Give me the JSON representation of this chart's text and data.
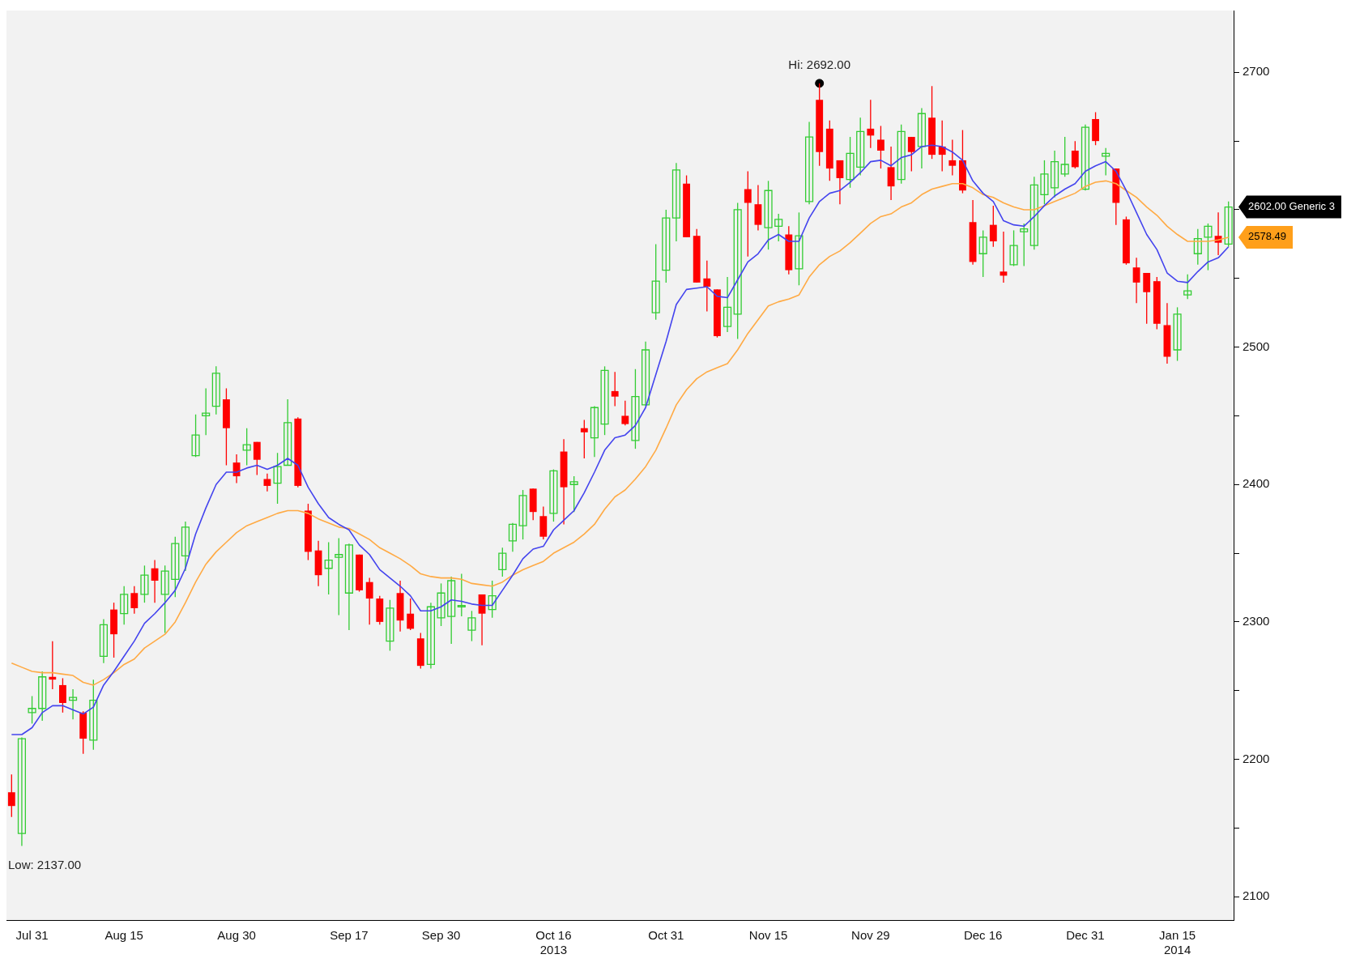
{
  "chart_data": {
    "type": "candlestick",
    "categories": [
      null,
      null,
      "Jul 31",
      null,
      null,
      null,
      null,
      null,
      null,
      null,
      null,
      "Aug 15",
      null,
      null,
      null,
      null,
      null,
      null,
      null,
      null,
      null,
      null,
      "Aug 30",
      null,
      null,
      null,
      null,
      null,
      null,
      null,
      null,
      null,
      null,
      "Sep 17",
      null,
      null,
      null,
      null,
      null,
      null,
      null,
      null,
      "Sep 30",
      null,
      null,
      null,
      null,
      null,
      null,
      null,
      null,
      null,
      null,
      "Oct 16\n2013",
      null,
      null,
      null,
      null,
      null,
      null,
      null,
      null,
      null,
      null,
      "Oct 31",
      null,
      null,
      null,
      null,
      null,
      null,
      null,
      null,
      null,
      "Nov 15",
      null,
      null,
      null,
      null,
      null,
      null,
      null,
      null,
      null,
      "Nov 29",
      null,
      null,
      null,
      null,
      null,
      null,
      null,
      null,
      null,
      null,
      "Dec 16",
      null,
      null,
      null,
      null,
      null,
      null,
      null,
      null,
      null,
      "Dec 31",
      null,
      null,
      null,
      null,
      null,
      null,
      null,
      null,
      "Jan 15\n2014",
      null,
      null,
      null,
      null,
      null
    ],
    "ohlc": [
      [
        2176,
        2189,
        2158,
        2166
      ],
      [
        2146,
        2216,
        2137,
        2215
      ],
      [
        2234,
        2246,
        2226,
        2237
      ],
      [
        2237,
        2264,
        2228,
        2260
      ],
      [
        2260,
        2286,
        2251,
        2258
      ],
      [
        2254,
        2259,
        2234,
        2241
      ],
      [
        2243,
        2251,
        2229,
        2245
      ],
      [
        2234,
        2235,
        2204,
        2215
      ],
      [
        2214,
        2258,
        2207,
        2243
      ],
      [
        2275,
        2302,
        2270,
        2298
      ],
      [
        2309,
        2314,
        2274,
        2291
      ],
      [
        2306,
        2326,
        2298,
        2320
      ],
      [
        2321,
        2326,
        2306,
        2310
      ],
      [
        2320,
        2341,
        2314,
        2334
      ],
      [
        2339,
        2345,
        2314,
        2330
      ],
      [
        2320,
        2341,
        2292,
        2337
      ],
      [
        2331,
        2362,
        2318,
        2357
      ],
      [
        2348,
        2373,
        2337,
        2369
      ],
      [
        2421,
        2451,
        2420,
        2436
      ],
      [
        2450,
        2470,
        2436,
        2452
      ],
      [
        2457,
        2486,
        2451,
        2481
      ],
      [
        2462,
        2470,
        2414,
        2441
      ],
      [
        2416,
        2422,
        2401,
        2406
      ],
      [
        2425,
        2441,
        2414,
        2429
      ],
      [
        2431,
        2431,
        2407,
        2418
      ],
      [
        2404,
        2408,
        2395,
        2399
      ],
      [
        2401,
        2423,
        2386,
        2413
      ],
      [
        2414,
        2462,
        2414,
        2445
      ],
      [
        2448,
        2449,
        2398,
        2399
      ],
      [
        2381,
        2386,
        2345,
        2351
      ],
      [
        2352,
        2359,
        2326,
        2334
      ],
      [
        2339,
        2358,
        2320,
        2345
      ],
      [
        2347,
        2361,
        2305,
        2349
      ],
      [
        2321,
        2357,
        2294,
        2356
      ],
      [
        2349,
        2349,
        2322,
        2323
      ],
      [
        2329,
        2332,
        2298,
        2317
      ],
      [
        2317,
        2319,
        2298,
        2300
      ],
      [
        2286,
        2316,
        2279,
        2310
      ],
      [
        2321,
        2330,
        2293,
        2301
      ],
      [
        2306,
        2317,
        2294,
        2295
      ],
      [
        2288,
        2292,
        2266,
        2268
      ],
      [
        2269,
        2314,
        2266,
        2311
      ],
      [
        2303,
        2328,
        2297,
        2321
      ],
      [
        2304,
        2333,
        2284,
        2330
      ],
      [
        2311,
        2335,
        2304,
        2312
      ],
      [
        2294,
        2308,
        2286,
        2303
      ],
      [
        2320,
        2320,
        2283,
        2306
      ],
      [
        2309,
        2330,
        2303,
        2319
      ],
      [
        2338,
        2354,
        2333,
        2350
      ],
      [
        2359,
        2372,
        2351,
        2371
      ],
      [
        2370,
        2396,
        2360,
        2392
      ],
      [
        2397,
        2397,
        2374,
        2380
      ],
      [
        2377,
        2384,
        2360,
        2362
      ],
      [
        2379,
        2411,
        2373,
        2410
      ],
      [
        2424,
        2433,
        2371,
        2398
      ],
      [
        2400,
        2406,
        2380,
        2402
      ],
      [
        2441,
        2447,
        2419,
        2438
      ],
      [
        2434,
        2457,
        2420,
        2456
      ],
      [
        2444,
        2486,
        2436,
        2483
      ],
      [
        2468,
        2482,
        2457,
        2464
      ],
      [
        2450,
        2461,
        2443,
        2444
      ],
      [
        2432,
        2484,
        2426,
        2464
      ],
      [
        2458,
        2504,
        2457,
        2498
      ],
      [
        2525,
        2575,
        2520,
        2548
      ],
      [
        2556,
        2600,
        2547,
        2594
      ],
      [
        2594,
        2634,
        2577,
        2629
      ],
      [
        2619,
        2625,
        2580,
        2580
      ],
      [
        2581,
        2586,
        2547,
        2547
      ],
      [
        2550,
        2563,
        2526,
        2544
      ],
      [
        2542,
        2542,
        2507,
        2508
      ],
      [
        2515,
        2551,
        2511,
        2529
      ],
      [
        2524,
        2605,
        2506,
        2600
      ],
      [
        2615,
        2628,
        2566,
        2605
      ],
      [
        2604,
        2618,
        2585,
        2589
      ],
      [
        2587,
        2621,
        2571,
        2614
      ],
      [
        2588,
        2597,
        2577,
        2593
      ],
      [
        2582,
        2588,
        2553,
        2556
      ],
      [
        2557,
        2598,
        2545,
        2581
      ],
      [
        2606,
        2664,
        2604,
        2653
      ],
      [
        2680,
        2692,
        2632,
        2642
      ],
      [
        2659,
        2665,
        2621,
        2630
      ],
      [
        2636,
        2636,
        2604,
        2623
      ],
      [
        2622,
        2653,
        2616,
        2641
      ],
      [
        2631,
        2667,
        2625,
        2657
      ],
      [
        2659,
        2680,
        2645,
        2654
      ],
      [
        2651,
        2661,
        2630,
        2643
      ],
      [
        2631,
        2646,
        2607,
        2617
      ],
      [
        2622,
        2662,
        2619,
        2657
      ],
      [
        2653,
        2653,
        2628,
        2642
      ],
      [
        2646,
        2674,
        2630,
        2670
      ],
      [
        2667,
        2690,
        2637,
        2640
      ],
      [
        2646,
        2665,
        2628,
        2640
      ],
      [
        2636,
        2651,
        2625,
        2632
      ],
      [
        2636,
        2658,
        2612,
        2614
      ],
      [
        2591,
        2607,
        2560,
        2562
      ],
      [
        2568,
        2585,
        2551,
        2580
      ],
      [
        2589,
        2603,
        2573,
        2577
      ],
      [
        2555,
        2584,
        2547,
        2552
      ],
      [
        2560,
        2585,
        2559,
        2574
      ],
      [
        2584,
        2590,
        2559,
        2586
      ],
      [
        2574,
        2624,
        2571,
        2618
      ],
      [
        2611,
        2636,
        2604,
        2626
      ],
      [
        2616,
        2643,
        2609,
        2635
      ],
      [
        2626,
        2653,
        2624,
        2633
      ],
      [
        2643,
        2650,
        2630,
        2631
      ],
      [
        2615,
        2662,
        2614,
        2660
      ],
      [
        2666,
        2671,
        2647,
        2650
      ],
      [
        2639,
        2645,
        2625,
        2641
      ],
      [
        2630,
        2630,
        2589,
        2605
      ],
      [
        2593,
        2595,
        2560,
        2561
      ],
      [
        2558,
        2565,
        2532,
        2547
      ],
      [
        2554,
        2554,
        2517,
        2540
      ],
      [
        2548,
        2551,
        2513,
        2517
      ],
      [
        2516,
        2532,
        2488,
        2493
      ],
      [
        2498,
        2529,
        2490,
        2524
      ],
      [
        2538,
        2553,
        2535,
        2541
      ],
      [
        2568,
        2586,
        2560,
        2579
      ],
      [
        2580,
        2590,
        2556,
        2588
      ],
      [
        2581,
        2598,
        2567,
        2576
      ],
      [
        2575,
        2606,
        2573,
        2602
      ]
    ],
    "colors": [
      "#ff0000",
      "#33cc33",
      "#33cc33",
      "#33cc33",
      "#ff0000",
      "#ff0000",
      "#33cc33",
      "#ff0000",
      "#33cc33",
      "#33cc33",
      "#ff0000",
      "#33cc33",
      "#ff0000",
      "#33cc33",
      "#ff0000",
      "#33cc33",
      "#33cc33",
      "#33cc33",
      "#33cc33",
      "#33cc33",
      "#33cc33",
      "#ff0000",
      "#ff0000",
      "#33cc33",
      "#ff0000",
      "#ff0000",
      "#33cc33",
      "#33cc33",
      "#ff0000",
      "#ff0000",
      "#ff0000",
      "#33cc33",
      "#33cc33",
      "#33cc33",
      "#ff0000",
      "#ff0000",
      "#ff0000",
      "#33cc33",
      "#ff0000",
      "#ff0000",
      "#ff0000",
      "#33cc33",
      "#33cc33",
      "#33cc33",
      "#33cc33",
      "#33cc33",
      "#ff0000",
      "#33cc33",
      "#33cc33",
      "#33cc33",
      "#33cc33",
      "#ff0000",
      "#ff0000",
      "#33cc33",
      "#ff0000",
      "#33cc33",
      "#ff0000",
      "#33cc33",
      "#33cc33",
      "#ff0000",
      "#ff0000",
      "#33cc33",
      "#33cc33",
      "#33cc33",
      "#33cc33",
      "#33cc33",
      "#ff0000",
      "#ff0000",
      "#ff0000",
      "#ff0000",
      "#33cc33",
      "#33cc33",
      "#ff0000",
      "#ff0000",
      "#33cc33",
      "#33cc33",
      "#ff0000",
      "#33cc33",
      "#33cc33",
      "#ff0000",
      "#ff0000",
      "#ff0000",
      "#33cc33",
      "#33cc33",
      "#ff0000",
      "#ff0000",
      "#ff0000",
      "#33cc33",
      "#ff0000",
      "#33cc33",
      "#ff0000",
      "#ff0000",
      "#ff0000",
      "#ff0000",
      "#ff0000",
      "#33cc33",
      "#ff0000",
      "#ff0000",
      "#33cc33",
      "#33cc33",
      "#33cc33",
      "#33cc33",
      "#33cc33",
      "#33cc33",
      "#ff0000",
      "#33cc33",
      "#ff0000",
      "#33cc33",
      "#ff0000",
      "#ff0000",
      "#ff0000",
      "#ff0000",
      "#ff0000",
      "#ff0000",
      "#33cc33",
      "#33cc33",
      "#33cc33",
      "#33cc33",
      "#ff0000",
      "#33cc33"
    ],
    "series": [
      {
        "type": "line",
        "color": "#4444ee",
        "values": [
          2218,
          2218,
          2223,
          2234,
          2239,
          2239,
          2236,
          2233,
          2238,
          2254,
          2264,
          2275,
          2286,
          2299,
          2306,
          2314,
          2323,
          2339,
          2364,
          2383,
          2400,
          2409,
          2409,
          2412,
          2414,
          2411,
          2414,
          2419,
          2414,
          2398,
          2386,
          2376,
          2371,
          2367,
          2356,
          2349,
          2338,
          2332,
          2326,
          2319,
          2308,
          2308,
          2311,
          2316,
          2315,
          2313,
          2312,
          2312,
          2323,
          2334,
          2346,
          2353,
          2355,
          2367,
          2374,
          2381,
          2394,
          2409,
          2425,
          2434,
          2436,
          2443,
          2456,
          2480,
          2504,
          2531,
          2542,
          2543,
          2544,
          2537,
          2536,
          2549,
          2562,
          2568,
          2578,
          2582,
          2577,
          2577,
          2594,
          2606,
          2612,
          2614,
          2620,
          2627,
          2635,
          2636,
          2632,
          2638,
          2640,
          2646,
          2647,
          2646,
          2642,
          2636,
          2621,
          2612,
          2606,
          2592,
          2589,
          2588,
          2595,
          2603,
          2610,
          2615,
          2619,
          2628,
          2632,
          2635,
          2628,
          2614,
          2598,
          2582,
          2571,
          2554,
          2548,
          2547,
          2555,
          2562,
          2565,
          2573
        ]
      },
      {
        "type": "line",
        "color": "#ffaa44",
        "values": [
          2270,
          2267,
          2264,
          2263,
          2263,
          2262,
          2261,
          2256,
          2254,
          2258,
          2263,
          2269,
          2273,
          2281,
          2286,
          2291,
          2300,
          2314,
          2329,
          2342,
          2351,
          2358,
          2365,
          2370,
          2373,
          2376,
          2379,
          2381,
          2381,
          2379,
          2375,
          2372,
          2369,
          2368,
          2364,
          2360,
          2354,
          2350,
          2346,
          2341,
          2335,
          2333,
          2332,
          2332,
          2331,
          2328,
          2327,
          2326,
          2329,
          2334,
          2338,
          2341,
          2344,
          2350,
          2354,
          2358,
          2364,
          2371,
          2382,
          2391,
          2396,
          2404,
          2413,
          2425,
          2441,
          2458,
          2469,
          2477,
          2482,
          2485,
          2488,
          2498,
          2510,
          2520,
          2530,
          2533,
          2535,
          2538,
          2551,
          2560,
          2566,
          2570,
          2576,
          2583,
          2590,
          2595,
          2597,
          2602,
          2605,
          2611,
          2615,
          2617,
          2619,
          2619,
          2616,
          2611,
          2609,
          2605,
          2602,
          2600,
          2600,
          2603,
          2606,
          2609,
          2612,
          2617,
          2620,
          2621,
          2619,
          2614,
          2609,
          2602,
          2596,
          2588,
          2582,
          2577,
          2577,
          2577,
          2578,
          2580
        ]
      },
      {
        "type": "scatter",
        "color": "#000000",
        "values": [
          null,
          null,
          null,
          null,
          null,
          null,
          null,
          null,
          null,
          null,
          null,
          null,
          null,
          null,
          null,
          null,
          null,
          null,
          null,
          null,
          null,
          null,
          null,
          null,
          null,
          null,
          null,
          null,
          null,
          null,
          null,
          null,
          null,
          null,
          null,
          null,
          null,
          null,
          null,
          null,
          null,
          null,
          null,
          null,
          null,
          null,
          null,
          null,
          null,
          null,
          null,
          null,
          null,
          null,
          null,
          null,
          null,
          null,
          null,
          null,
          null,
          null,
          null,
          null,
          null,
          null,
          null,
          null,
          null,
          null,
          null,
          null,
          null,
          null,
          null,
          null,
          null,
          null,
          null,
          2692,
          null,
          null,
          null,
          null,
          null,
          null,
          null,
          null,
          null,
          null,
          null,
          null,
          null,
          null,
          null,
          null,
          null,
          null,
          null,
          null,
          null,
          null,
          null,
          null,
          null,
          null,
          null,
          null,
          null,
          null,
          null,
          null,
          null,
          null,
          null,
          null,
          null,
          null,
          null,
          null
        ]
      }
    ],
    "ylim": [
      2083,
      2745
    ],
    "yticks": [
      2100,
      {
        "value": 2150,
        "label": null
      },
      2200,
      {
        "value": 2250,
        "label": null
      },
      2300,
      {
        "value": 2350,
        "label": null
      },
      2400,
      {
        "value": 2450,
        "label": null
      },
      2500,
      {
        "value": 2550,
        "label": null
      },
      {
        "value": 2600,
        "label": null
      },
      {
        "value": 2650,
        "label": null
      },
      2700
    ],
    "annotations": [
      {
        "text": "Hi: 2692.00",
        "y": 2692
      },
      "Low: 2137.00",
      "2602.00 Generic 3",
      "2578.49"
    ],
    "legend": false
  }
}
